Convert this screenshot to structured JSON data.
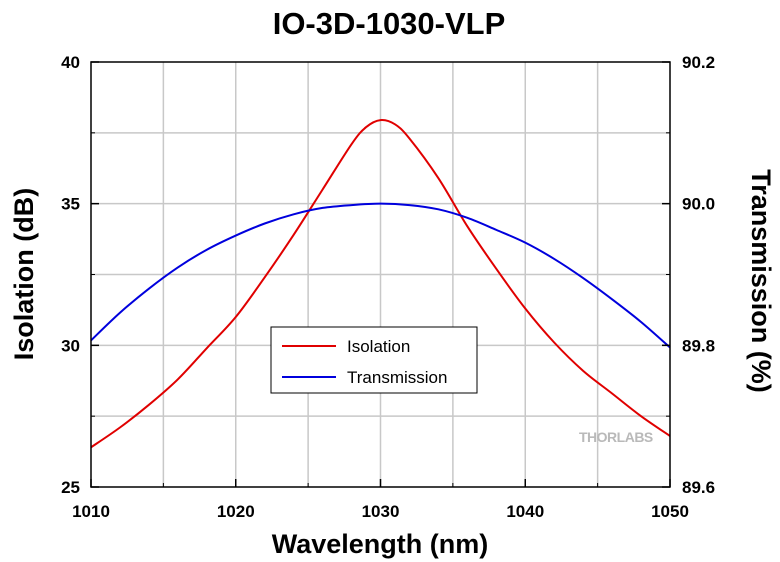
{
  "chart_data": {
    "type": "line",
    "title": "IO-3D-1030-VLP",
    "xlabel": "Wavelength (nm)",
    "ylabel": "Isolation (dB)",
    "y2label": "Transmission (%)",
    "xlim": [
      1010,
      1050
    ],
    "ylim": [
      25,
      40
    ],
    "y2lim": [
      89.6,
      90.2
    ],
    "x_ticks": [
      1010,
      1020,
      1030,
      1040,
      1050
    ],
    "y_ticks": [
      25,
      30,
      35,
      40
    ],
    "y2_ticks": [
      "89.6",
      "89.8",
      "90.0",
      "90.2"
    ],
    "grid": true,
    "legend_position": "center",
    "series": [
      {
        "name": "Isolation",
        "axis": "left",
        "color": "#e00000",
        "x": [
          1010,
          1012,
          1014,
          1016,
          1018,
          1020,
          1022,
          1024,
          1026,
          1028,
          1029,
          1030,
          1031,
          1032,
          1034,
          1036,
          1038,
          1040,
          1042,
          1044,
          1046,
          1048,
          1050
        ],
        "y": [
          26.4,
          27.1,
          27.9,
          28.8,
          29.9,
          31.0,
          32.4,
          33.9,
          35.5,
          37.1,
          37.7,
          37.95,
          37.8,
          37.3,
          35.9,
          34.2,
          32.7,
          31.3,
          30.1,
          29.1,
          28.3,
          27.5,
          26.8
        ]
      },
      {
        "name": "Transmission",
        "axis": "right",
        "color": "#0000dd",
        "x": [
          1010,
          1012,
          1014,
          1016,
          1018,
          1020,
          1022,
          1024,
          1026,
          1028,
          1030,
          1032,
          1034,
          1036,
          1038,
          1040,
          1042,
          1044,
          1046,
          1048,
          1050
        ],
        "y": [
          89.807,
          89.846,
          89.88,
          89.91,
          89.935,
          89.955,
          89.972,
          89.985,
          89.994,
          89.998,
          90.0,
          89.998,
          89.992,
          89.98,
          89.963,
          89.945,
          89.922,
          89.895,
          89.865,
          89.833,
          89.797
        ]
      }
    ]
  },
  "watermark": "THORLABS"
}
